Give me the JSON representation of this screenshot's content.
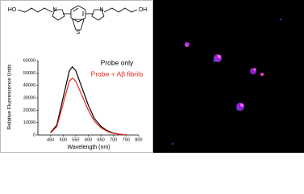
{
  "structure": {
    "left_hydroxyl": "HO",
    "right_hydroxyl": "OH",
    "sulfur": "S",
    "nitrogen": "N"
  },
  "chart_data": {
    "type": "line",
    "y_label": "Relative Fluorescence Units",
    "x_label": "Wavelength (nm)",
    "x": [
      450,
      475,
      500,
      525,
      537,
      550,
      575,
      600,
      625,
      650,
      675,
      700,
      725,
      750
    ],
    "series": [
      {
        "name": "Probe only",
        "color": "#000000",
        "values": [
          2000,
          8000,
          30000,
          52000,
          55000,
          52000,
          38000,
          24000,
          13000,
          7000,
          3500,
          1500,
          600,
          200
        ]
      },
      {
        "name": "Probe + Aβ fibrils",
        "color": "#e8261c",
        "values": [
          1700,
          6700,
          25000,
          43500,
          46000,
          43500,
          31800,
          20000,
          10900,
          5900,
          2900,
          1250,
          500,
          170
        ]
      }
    ],
    "xlim": [
      400,
      800
    ],
    "xticks": [
      450,
      500,
      550,
      600,
      650,
      700,
      750,
      800
    ],
    "ylim": [
      0,
      60000
    ],
    "yticks": [
      0,
      10000,
      20000,
      30000,
      40000,
      50000,
      60000
    ]
  }
}
